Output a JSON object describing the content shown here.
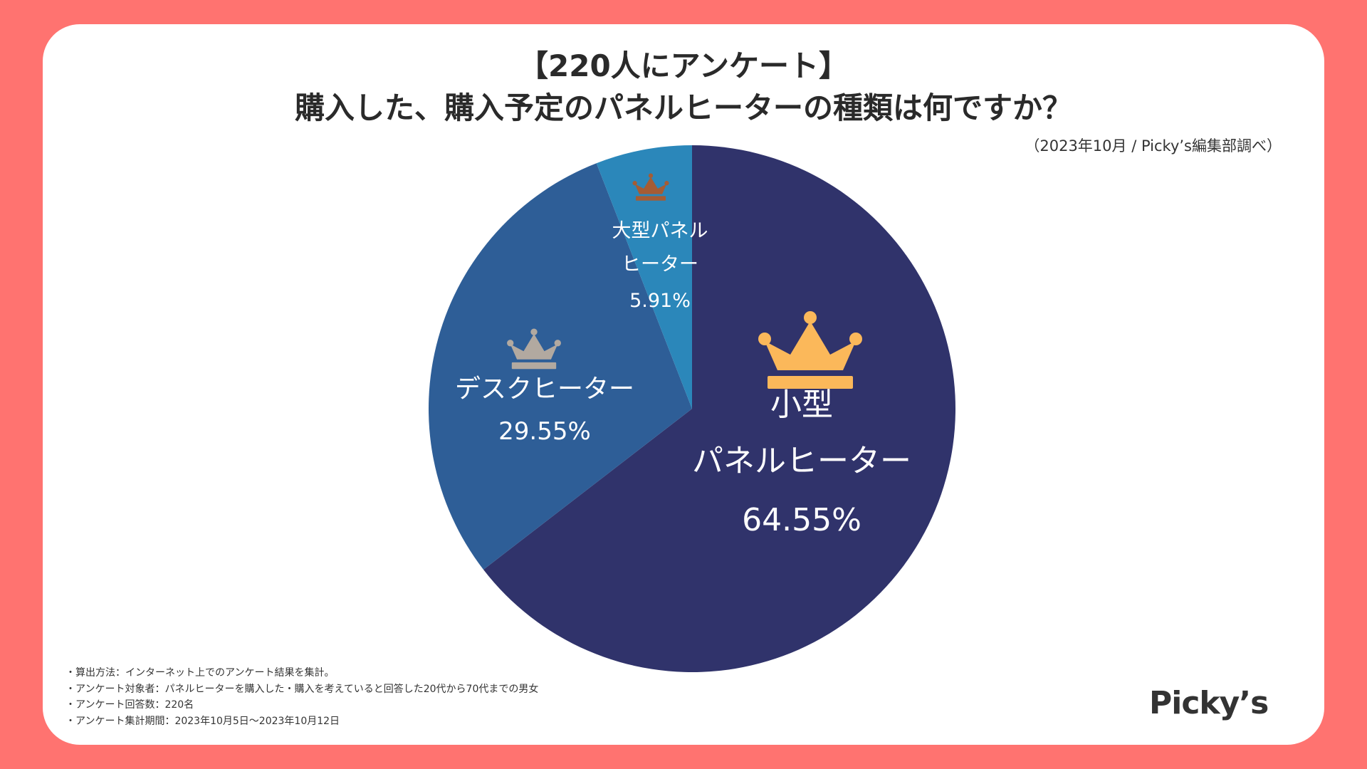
{
  "header": {
    "title_line1": "【220人にアンケート】",
    "title_line2": "購入した、購入予定のパネルヒーターの種類は何ですか？",
    "source": "（2023年10月 / Picky’s編集部調べ）"
  },
  "chart_data": {
    "type": "pie",
    "title": "購入した、購入予定のパネルヒーターの種類は何ですか？",
    "start_angle_deg": 0,
    "direction": "clockwise",
    "slices": [
      {
        "label_lines": [
          "小型",
          "パネルヒーター"
        ],
        "value": 64.55,
        "value_label": "64.55%",
        "color": "#30336b",
        "rank": 1,
        "crown_color": "#fbb85a"
      },
      {
        "label_lines": [
          "デスクヒーター"
        ],
        "value": 29.55,
        "value_label": "29.55%",
        "color": "#2e5e97",
        "rank": 2,
        "crown_color": "#b2a9a0"
      },
      {
        "label_lines": [
          "大型パネル",
          "ヒーター"
        ],
        "value": 5.91,
        "value_label": "5.91%",
        "color": "#2b87ba",
        "rank": 3,
        "crown_color": "#a55c34"
      }
    ]
  },
  "notes": [
    "・算出方法：インターネット上でのアンケート結果を集計。",
    "・アンケート対象者：パネルヒーターを購入した・購入を考えていると回答した20代から70代までの男女",
    "・アンケート回答数：220名",
    "・アンケート集計期間：2023年10月5日〜2023年10月12日"
  ],
  "brand": {
    "logo_text": "Picky’s"
  },
  "colors": {
    "background": "#ff7370",
    "card": "#ffffff",
    "text": "#2a2a2a",
    "label_text": "#ffffff"
  }
}
